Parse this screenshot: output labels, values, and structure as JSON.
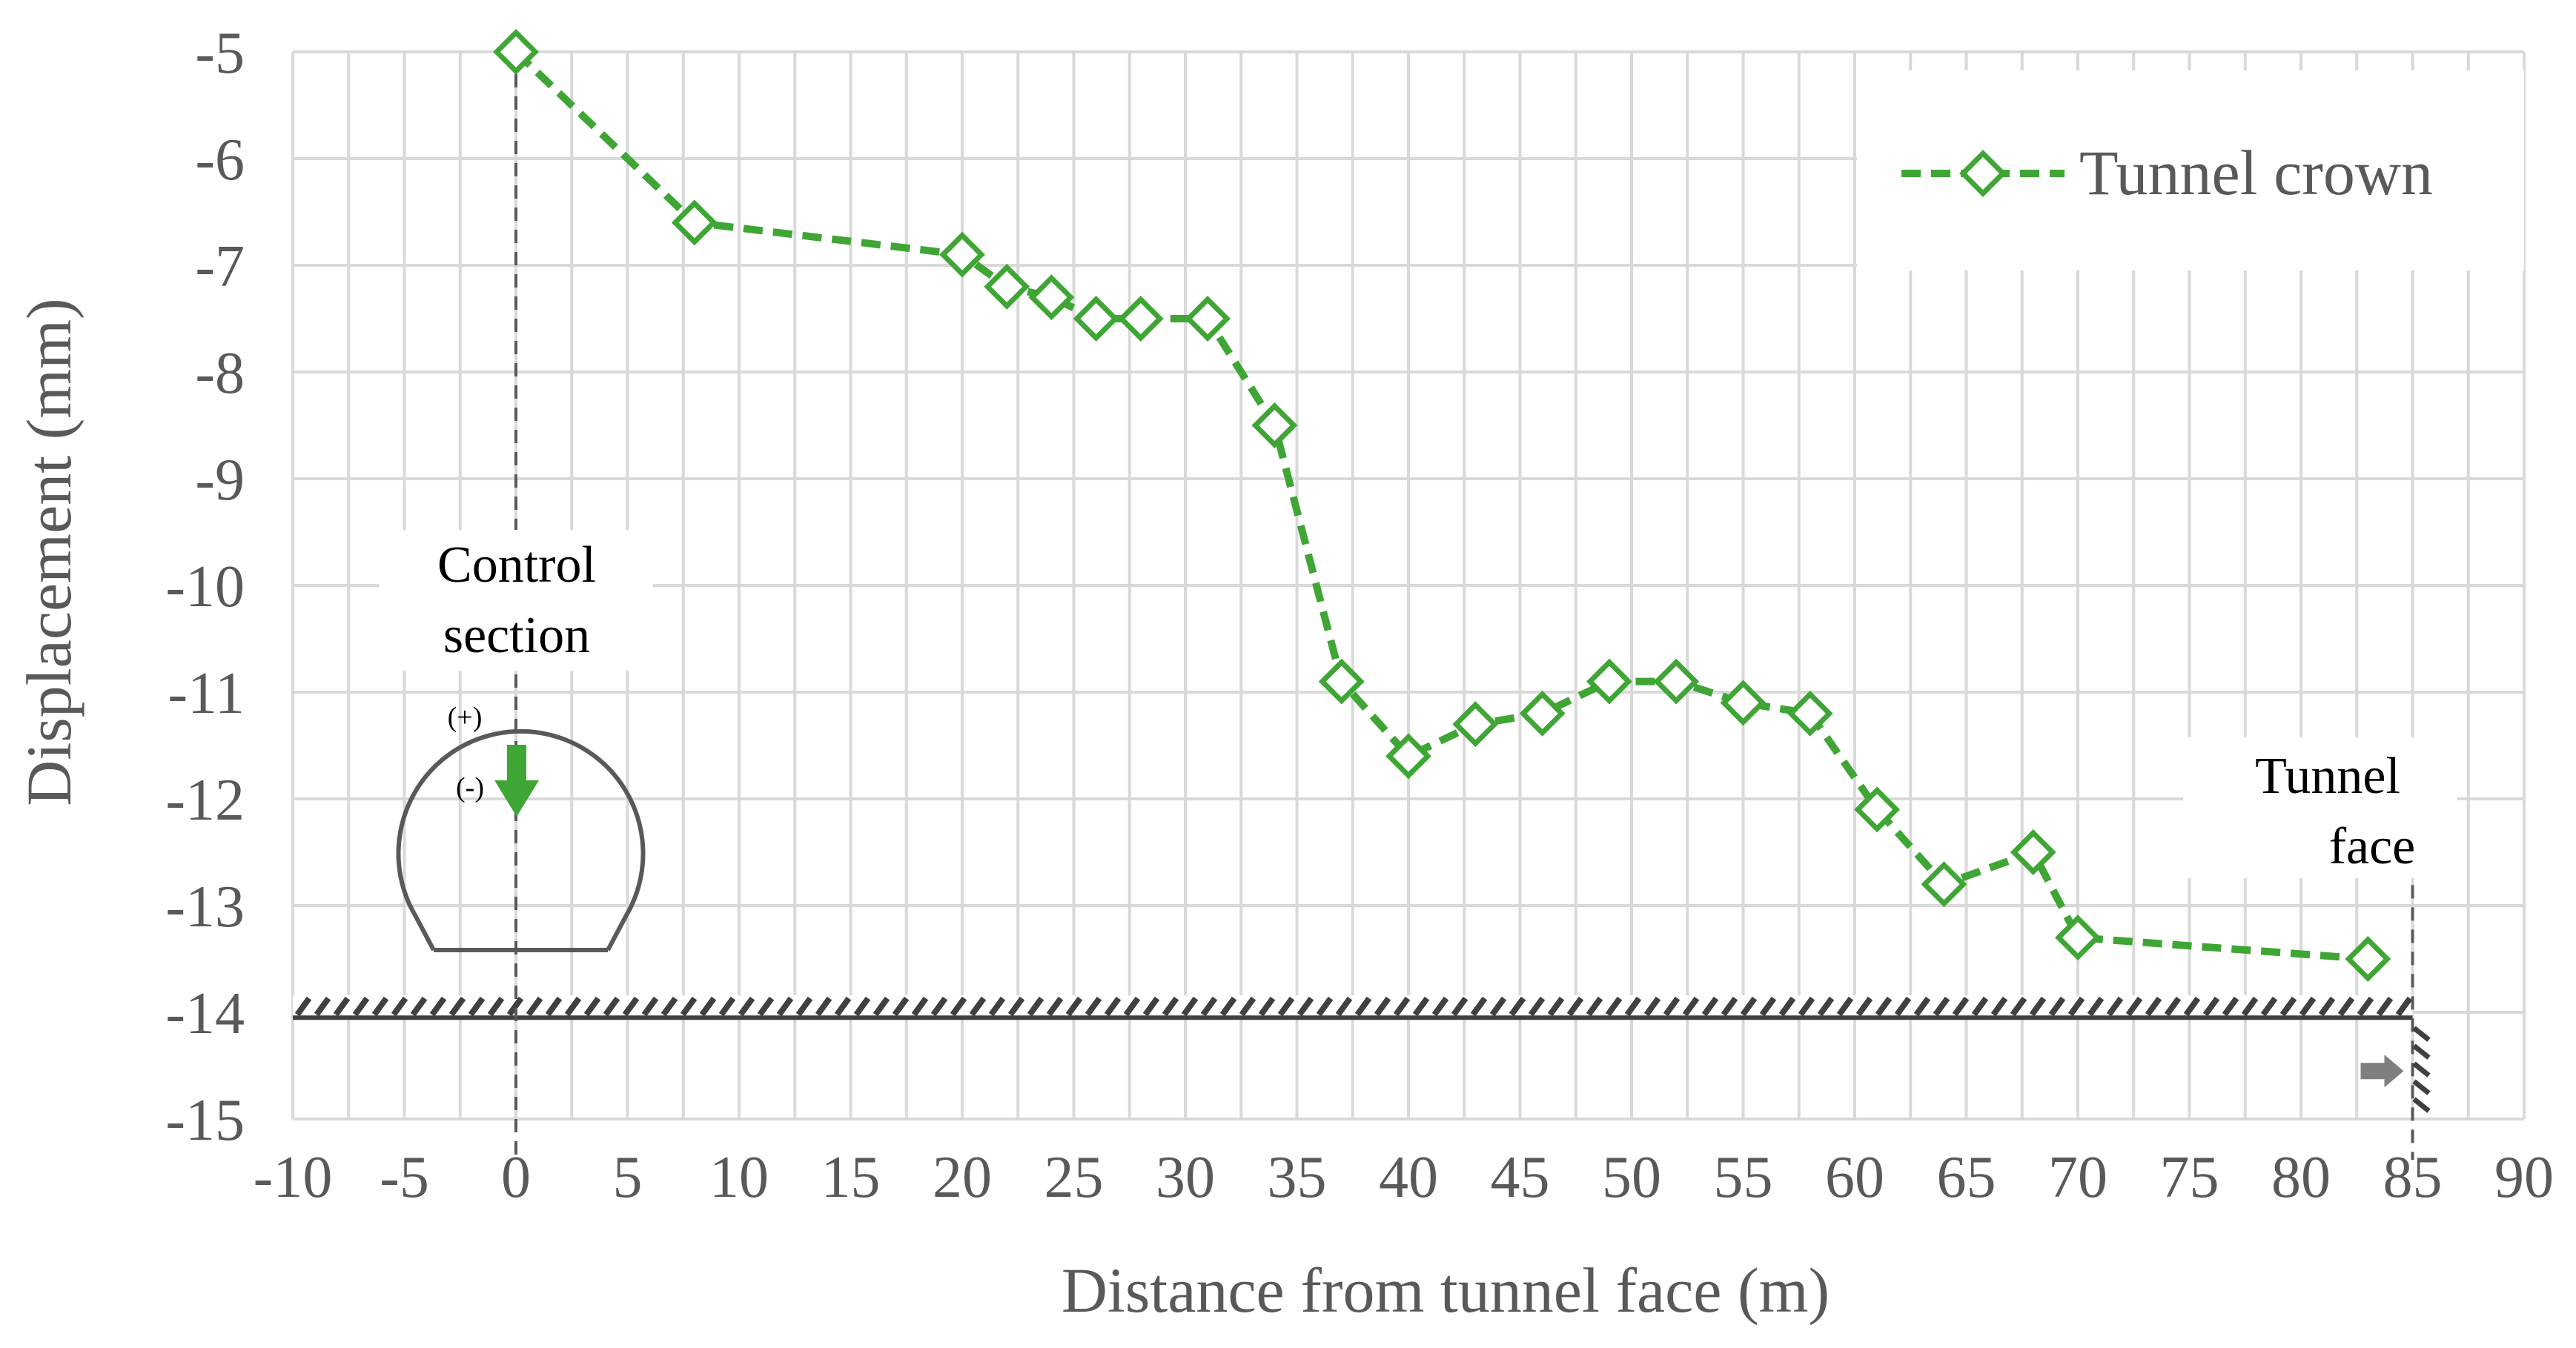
{
  "chart_data": {
    "type": "line",
    "xlabel": "Distance from tunnel face (m)",
    "ylabel": "Displacement (mm)",
    "xlim": [
      -10,
      90
    ],
    "ylim": [
      -15,
      -5
    ],
    "x_ticks": [
      "-10",
      "-5",
      "0",
      "5",
      "10",
      "15",
      "20",
      "25",
      "30",
      "35",
      "40",
      "45",
      "50",
      "55",
      "60",
      "65",
      "70",
      "75",
      "80",
      "85",
      "90"
    ],
    "y_ticks": [
      "-5",
      "-6",
      "-7",
      "-8",
      "-9",
      "-10",
      "-11",
      "-12",
      "-13",
      "-14",
      "-15"
    ],
    "grid": true,
    "legend_position": "top-right",
    "series": [
      {
        "name": "Tunnel crown",
        "color": "#3FA535",
        "marker": "diamond",
        "line_style": "dashed",
        "x": [
          0,
          8,
          20,
          22,
          24,
          26,
          28,
          31,
          34,
          37,
          40,
          43,
          46,
          49,
          52,
          55,
          58,
          61,
          64,
          68,
          70,
          83
        ],
        "y": [
          -5.0,
          -6.6,
          -6.9,
          -7.2,
          -7.3,
          -7.5,
          -7.5,
          -7.5,
          -8.5,
          -10.9,
          -11.6,
          -11.3,
          -11.2,
          -10.9,
          -10.9,
          -11.1,
          -11.2,
          -12.1,
          -12.8,
          -12.5,
          -13.3,
          -13.5
        ]
      }
    ],
    "annotations": {
      "control_section": [
        "Control",
        "section"
      ],
      "tunnel_face": [
        "Tunnel",
        "face"
      ],
      "plus_sign": "(+)",
      "minus_sign": "(-)"
    },
    "control_section_x": 0,
    "tunnel_face_x": 85,
    "ground_level_y": -14.05
  }
}
